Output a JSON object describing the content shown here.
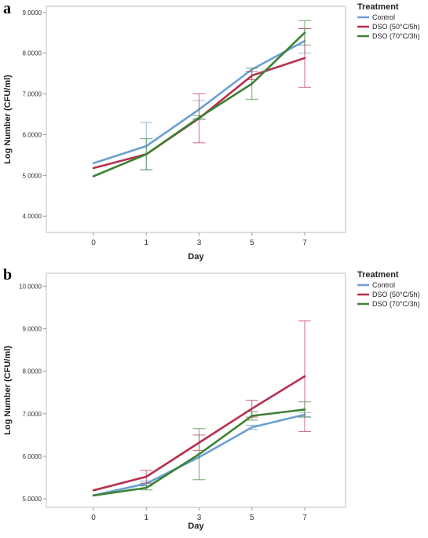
{
  "chart_data": [
    {
      "panel": "a",
      "type": "line",
      "xlabel": "Day",
      "ylabel": "Log Number (CFU/ml)",
      "categories": [
        "0",
        "1",
        "3",
        "5",
        "7"
      ],
      "yticks": [
        "4.0000",
        "5.0000",
        "6.0000",
        "7.0000",
        "8.0000",
        "9.0000"
      ],
      "ylim": [
        3.6,
        9.15
      ],
      "grid": false,
      "legend_title": "Treatment",
      "legend_position": "top-right",
      "series": [
        {
          "name": "Control",
          "color": "#6b9fd4",
          "values": [
            5.3,
            5.72,
            6.62,
            7.6,
            8.3
          ],
          "errors": [
            0,
            0.58,
            0.22,
            0.0,
            0.3
          ]
        },
        {
          "name": "DSO (50°C/5h)",
          "color": "#b72e4e",
          "values": [
            5.18,
            5.52,
            6.4,
            7.45,
            7.88
          ],
          "errors": [
            0,
            0.0,
            0.6,
            0.1,
            0.72
          ]
        },
        {
          "name": "DSO (70°C/3h)",
          "color": "#3c8132",
          "values": [
            4.98,
            5.52,
            6.42,
            7.25,
            8.5
          ],
          "errors": [
            0,
            0.38,
            0.05,
            0.38,
            0.3
          ]
        }
      ]
    },
    {
      "panel": "b",
      "type": "line",
      "xlabel": "Day",
      "ylabel": "Log Number (CFU/ml)",
      "categories": [
        "0",
        "1",
        "3",
        "5",
        "7"
      ],
      "yticks": [
        "5.0000",
        "6.0000",
        "7.0000",
        "8.0000",
        "9.0000",
        "10.0000"
      ],
      "ylim": [
        4.8,
        10.3
      ],
      "grid": false,
      "legend_title": "Treatment",
      "legend_position": "top-right",
      "series": [
        {
          "name": "Control",
          "color": "#6b9fd4",
          "values": [
            5.08,
            5.36,
            5.98,
            6.68,
            6.98
          ],
          "errors": [
            0,
            0.06,
            0.0,
            0.05,
            0.05
          ]
        },
        {
          "name": "DSO (50°C/5h)",
          "color": "#b72e4e",
          "values": [
            5.2,
            5.52,
            6.32,
            7.12,
            7.88
          ],
          "errors": [
            0,
            0.15,
            0.18,
            0.2,
            1.3
          ]
        },
        {
          "name": "DSO (70°C/3h)",
          "color": "#3c8132",
          "values": [
            5.08,
            5.26,
            6.05,
            6.95,
            7.1
          ],
          "errors": [
            0,
            0.05,
            0.6,
            0.1,
            0.18
          ]
        }
      ]
    }
  ]
}
